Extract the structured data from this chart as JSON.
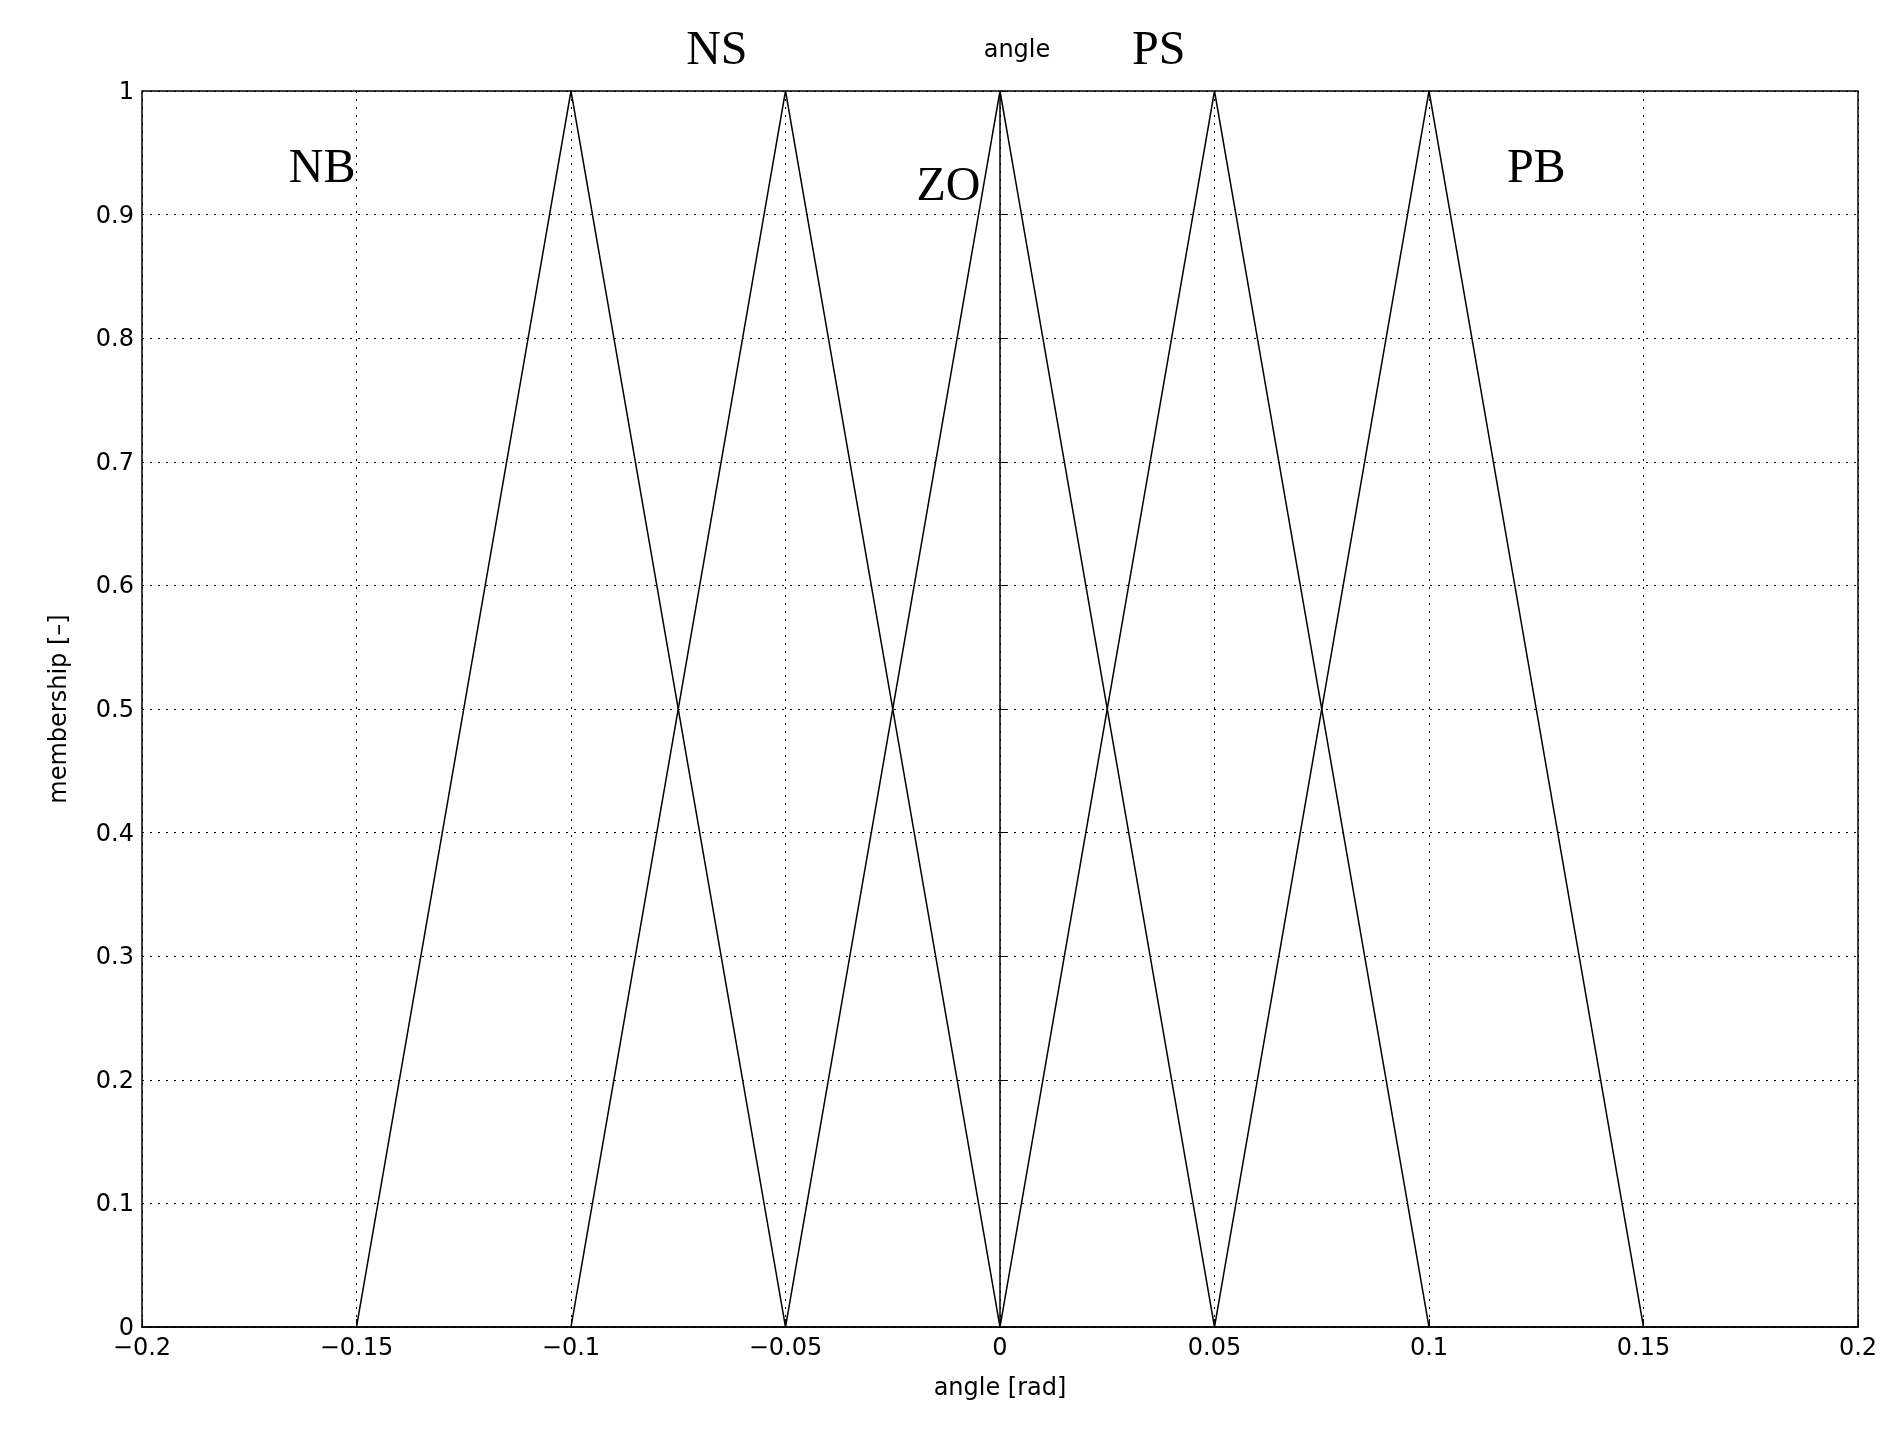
{
  "chart_data": {
    "type": "line",
    "title": "angle",
    "xlabel": "angle [rad]",
    "ylabel": "membership [–]",
    "xlim": [
      -0.2,
      0.2
    ],
    "ylim": [
      0,
      1
    ],
    "xticks": [
      {
        "value": -0.2,
        "label": "−0.2"
      },
      {
        "value": -0.15,
        "label": "−0.15"
      },
      {
        "value": -0.1,
        "label": "−0.1"
      },
      {
        "value": -0.05,
        "label": "−0.05"
      },
      0,
      0.05,
      0.1,
      0.15,
      0.2
    ],
    "yticks": [
      0,
      0.1,
      0.2,
      0.3,
      0.4,
      0.5,
      0.6,
      0.7,
      0.8,
      0.9,
      1
    ],
    "grid": true,
    "marker": "none",
    "line_style": "solid",
    "annotations": [
      "NB",
      "NS",
      "ZO",
      "PS",
      "PB"
    ],
    "series": [
      {
        "color": "#000000",
        "x": [
          -0.15,
          -0.1,
          -0.05
        ],
        "values": [
          0,
          1,
          0
        ]
      },
      {
        "color": "#000000",
        "x": [
          -0.1,
          -0.05,
          0
        ],
        "values": [
          0,
          1,
          0
        ]
      },
      {
        "color": "#000000",
        "x": [
          -0.05,
          0,
          0.05
        ],
        "values": [
          0,
          1,
          0
        ]
      },
      {
        "color": "#000000",
        "x": [
          0,
          0.05,
          0.1
        ],
        "values": [
          0,
          1,
          0
        ]
      },
      {
        "color": "#000000",
        "x": [
          0.05,
          0.1,
          0.15
        ],
        "values": [
          0,
          1,
          0
        ]
      }
    ]
  }
}
